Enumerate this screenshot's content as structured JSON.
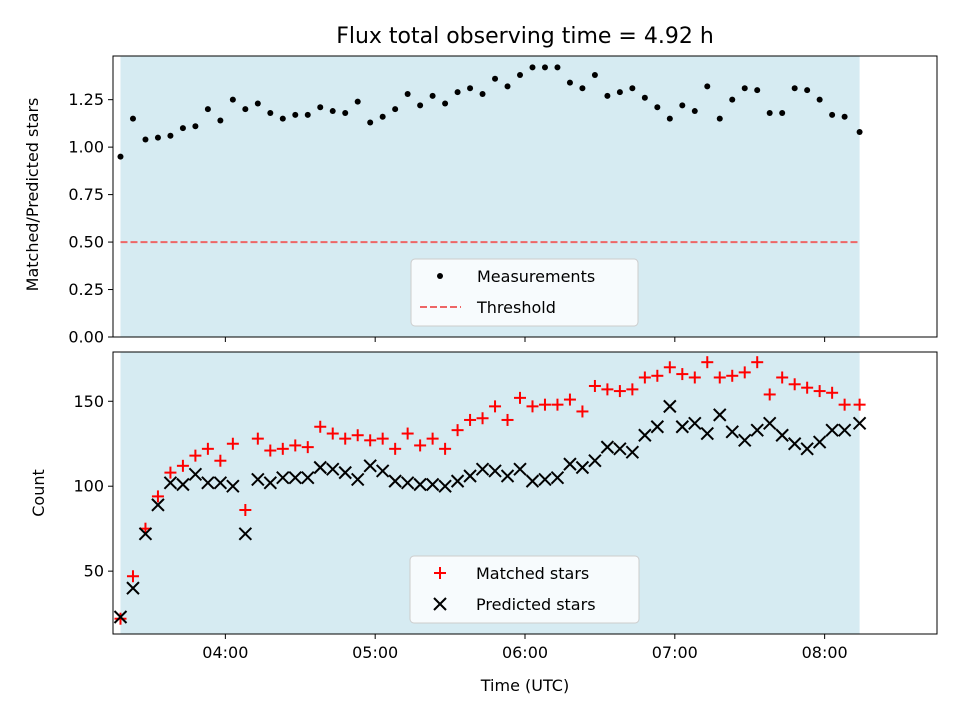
{
  "chart_data": [
    {
      "type": "scatter",
      "title": "Flux total observing time = 4.92 h",
      "ylabel": "Matched/Predicted stars",
      "xlim": [
        "03:15",
        "08:45"
      ],
      "ylim": [
        0,
        1.48
      ],
      "yticks": [
        "0.00",
        "0.25",
        "0.50",
        "0.75",
        "1.00",
        "1.25"
      ],
      "shaded_span": [
        "03:18",
        "08:14"
      ],
      "shaded_color": "#add8e6",
      "legend_position": "bottom-center",
      "series": [
        {
          "name": "Measurements",
          "marker": "dot",
          "color": "#000000",
          "x": [
            "03:18",
            "03:23",
            "03:28",
            "03:33",
            "03:38",
            "03:43",
            "03:48",
            "03:53",
            "03:58",
            "04:03",
            "04:08",
            "04:13",
            "04:18",
            "04:23",
            "04:28",
            "04:33",
            "04:38",
            "04:43",
            "04:48",
            "04:53",
            "04:58",
            "05:03",
            "05:08",
            "05:13",
            "05:18",
            "05:23",
            "05:28",
            "05:33",
            "05:38",
            "05:43",
            "05:48",
            "05:53",
            "05:58",
            "06:03",
            "06:08",
            "06:13",
            "06:18",
            "06:23",
            "06:28",
            "06:33",
            "06:38",
            "06:43",
            "06:48",
            "06:53",
            "06:58",
            "07:03",
            "07:08",
            "07:13",
            "07:18",
            "07:23",
            "07:28",
            "07:33",
            "07:38",
            "07:43",
            "07:48",
            "07:53",
            "07:58",
            "08:03",
            "08:08",
            "08:14"
          ],
          "y": [
            0.95,
            1.15,
            1.04,
            1.05,
            1.06,
            1.1,
            1.11,
            1.2,
            1.14,
            1.25,
            1.2,
            1.23,
            1.18,
            1.15,
            1.17,
            1.17,
            1.21,
            1.19,
            1.18,
            1.24,
            1.13,
            1.16,
            1.2,
            1.28,
            1.22,
            1.27,
            1.23,
            1.29,
            1.31,
            1.28,
            1.36,
            1.32,
            1.38,
            1.42,
            1.42,
            1.42,
            1.34,
            1.31,
            1.38,
            1.27,
            1.29,
            1.31,
            1.26,
            1.21,
            1.15,
            1.22,
            1.19,
            1.32,
            1.15,
            1.25,
            1.31,
            1.3,
            1.18,
            1.18,
            1.31,
            1.3,
            1.25,
            1.17,
            1.16,
            1.08
          ]
        },
        {
          "name": "Threshold",
          "marker": "dashed-line",
          "color": "#ee6666",
          "x": [
            "03:18",
            "08:14"
          ],
          "y": [
            0.5,
            0.5
          ]
        }
      ]
    },
    {
      "type": "scatter",
      "ylabel": "Count",
      "xlabel": "Time (UTC)",
      "xlim": [
        "03:15",
        "08:45"
      ],
      "ylim": [
        13,
        179
      ],
      "yticks": [
        "50",
        "100",
        "150"
      ],
      "xticks": [
        "04:00",
        "05:00",
        "06:00",
        "07:00",
        "08:00"
      ],
      "shaded_span": [
        "03:18",
        "08:14"
      ],
      "shaded_color": "#add8e6",
      "legend_position": "bottom-center",
      "series": [
        {
          "name": "Matched stars",
          "marker": "plus",
          "color": "#ff0000",
          "x": [
            "03:18",
            "03:23",
            "03:28",
            "03:33",
            "03:38",
            "03:43",
            "03:48",
            "03:53",
            "03:58",
            "04:03",
            "04:08",
            "04:13",
            "04:18",
            "04:23",
            "04:28",
            "04:33",
            "04:38",
            "04:43",
            "04:48",
            "04:53",
            "04:58",
            "05:03",
            "05:08",
            "05:13",
            "05:18",
            "05:23",
            "05:28",
            "05:33",
            "05:38",
            "05:43",
            "05:48",
            "05:53",
            "05:58",
            "06:03",
            "06:08",
            "06:13",
            "06:18",
            "06:23",
            "06:28",
            "06:33",
            "06:38",
            "06:43",
            "06:48",
            "06:53",
            "06:58",
            "07:03",
            "07:08",
            "07:13",
            "07:18",
            "07:23",
            "07:28",
            "07:33",
            "07:38",
            "07:43",
            "07:48",
            "07:53",
            "07:58",
            "08:03",
            "08:08",
            "08:14"
          ],
          "y": [
            22,
            47,
            75,
            94,
            108,
            112,
            118,
            122,
            115,
            125,
            86,
            128,
            121,
            122,
            124,
            123,
            135,
            131,
            128,
            130,
            127,
            128,
            122,
            131,
            124,
            128,
            122,
            133,
            139,
            140,
            147,
            139,
            152,
            147,
            148,
            148,
            151,
            144,
            159,
            157,
            156,
            157,
            164,
            165,
            170,
            166,
            164,
            173,
            164,
            165,
            167,
            173,
            154,
            164,
            160,
            158,
            156,
            155,
            148,
            148
          ]
        },
        {
          "name": "Predicted stars",
          "marker": "x",
          "color": "#000000",
          "x": [
            "03:18",
            "03:23",
            "03:28",
            "03:33",
            "03:38",
            "03:43",
            "03:48",
            "03:53",
            "03:58",
            "04:03",
            "04:08",
            "04:13",
            "04:18",
            "04:23",
            "04:28",
            "04:33",
            "04:38",
            "04:43",
            "04:48",
            "04:53",
            "04:58",
            "05:03",
            "05:08",
            "05:13",
            "05:18",
            "05:23",
            "05:28",
            "05:33",
            "05:38",
            "05:43",
            "05:48",
            "05:53",
            "05:58",
            "06:03",
            "06:08",
            "06:13",
            "06:18",
            "06:23",
            "06:28",
            "06:33",
            "06:38",
            "06:43",
            "06:48",
            "06:53",
            "06:58",
            "07:03",
            "07:08",
            "07:13",
            "07:18",
            "07:23",
            "07:28",
            "07:33",
            "07:38",
            "07:43",
            "07:48",
            "07:53",
            "07:58",
            "08:03",
            "08:08",
            "08:14"
          ],
          "y": [
            23,
            40,
            72,
            89,
            102,
            101,
            107,
            102,
            102,
            100,
            72,
            104,
            102,
            105,
            105,
            105,
            111,
            110,
            108,
            104,
            112,
            109,
            103,
            102,
            101,
            101,
            100,
            103,
            106,
            110,
            109,
            106,
            110,
            103,
            104,
            105,
            113,
            111,
            115,
            123,
            122,
            120,
            130,
            135,
            147,
            135,
            137,
            131,
            142,
            132,
            127,
            133,
            137,
            130,
            125,
            122,
            126,
            133,
            133,
            137
          ]
        }
      ]
    }
  ]
}
